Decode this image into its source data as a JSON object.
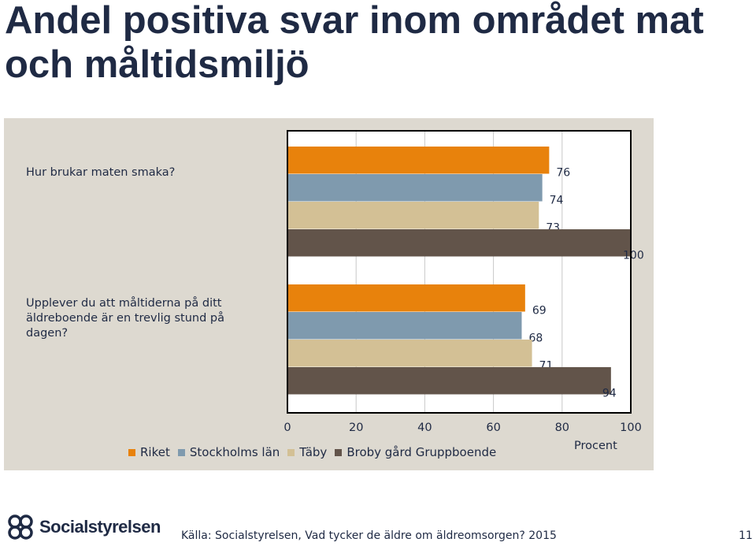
{
  "slide": {
    "title": "Andel positiva svar inom området mat och måltidsmiljö",
    "source": "Källa: Socialstyrelsen, Vad tycker de äldre om äldreomsorgen? 2015",
    "page_number": "11",
    "logo_text": "Socialstyrelsen"
  },
  "chart_data": {
    "type": "bar",
    "orientation": "horizontal",
    "categories": [
      "Hur brukar maten smaka?",
      "Upplever du att måltiderna på ditt äldreboende är en trevlig stund på dagen?"
    ],
    "series": [
      {
        "name": "Riket",
        "color": "#e8820c",
        "values": [
          76,
          69
        ]
      },
      {
        "name": "Stockholms län",
        "color": "#7f9aae",
        "values": [
          74,
          68
        ]
      },
      {
        "name": "Täby",
        "color": "#d3c095",
        "values": [
          73,
          71
        ]
      },
      {
        "name": "Broby gård Gruppboende",
        "color": "#62544a",
        "values": [
          100,
          94
        ]
      }
    ],
    "xlabel": "Procent",
    "xlim": [
      0,
      100
    ],
    "xticks": [
      "0",
      "20",
      "40",
      "60",
      "80",
      "100"
    ],
    "grid": true,
    "legend": "bottom",
    "plot_background": "#ffffff",
    "panel_background": "#ddd9d0"
  }
}
